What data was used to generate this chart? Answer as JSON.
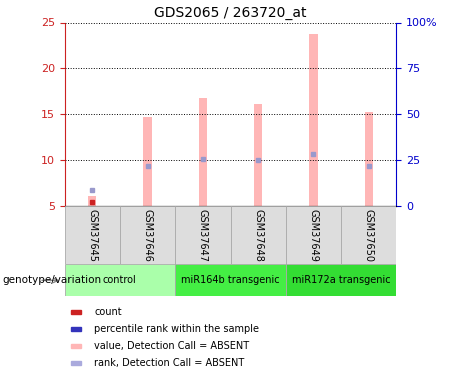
{
  "title": "GDS2065 / 263720_at",
  "samples": [
    "GSM37645",
    "GSM37646",
    "GSM37647",
    "GSM37648",
    "GSM37649",
    "GSM37650"
  ],
  "bar_values": [
    6.1,
    14.7,
    16.8,
    16.1,
    23.8,
    15.3
  ],
  "rank_values": [
    6.8,
    9.4,
    10.1,
    10.0,
    10.7,
    9.4
  ],
  "count_value": 5.5,
  "ylim_left": [
    5,
    25
  ],
  "ylim_right": [
    0,
    100
  ],
  "yticks_left": [
    5,
    10,
    15,
    20,
    25
  ],
  "yticks_right": [
    0,
    25,
    50,
    75,
    100
  ],
  "ytick_labels_right": [
    "0",
    "25",
    "50",
    "75",
    "100%"
  ],
  "bar_color": "#FFB6B6",
  "rank_dot_color": "#9999CC",
  "count_dot_color": "#CC2222",
  "bar_width": 0.15,
  "groups": [
    {
      "label": "control",
      "color": "#AAFFAA",
      "start": 0,
      "end": 2
    },
    {
      "label": "miR164b transgenic",
      "color": "#44EE44",
      "start": 2,
      "end": 4
    },
    {
      "label": "miR172a transgenic",
      "color": "#33DD33",
      "start": 4,
      "end": 6
    }
  ],
  "legend_items": [
    {
      "label": "count",
      "color": "#CC2222"
    },
    {
      "label": "percentile rank within the sample",
      "color": "#3333BB"
    },
    {
      "label": "value, Detection Call = ABSENT",
      "color": "#FFB6B6"
    },
    {
      "label": "rank, Detection Call = ABSENT",
      "color": "#AAAADD"
    }
  ],
  "xlabel": "genotype/variation",
  "bg_color": "#FFFFFF",
  "plot_bg": "#FFFFFF",
  "left_axis_color": "#CC2222",
  "right_axis_color": "#0000CC",
  "sample_box_color": "#DDDDDD",
  "sample_border_color": "#AAAAAA"
}
